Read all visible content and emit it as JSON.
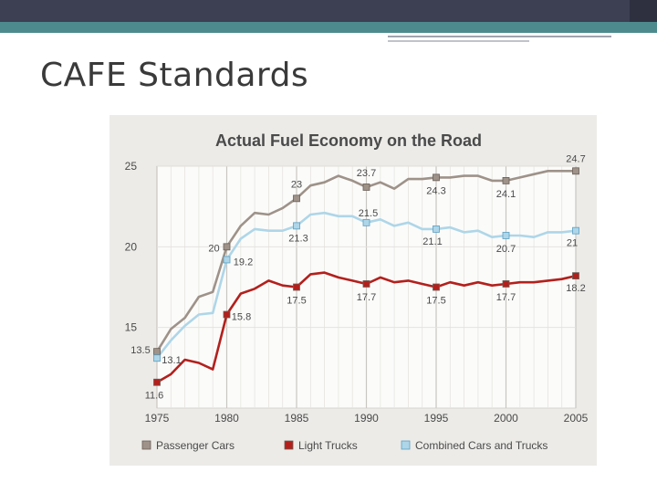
{
  "slide": {
    "title": "CAFE Standards",
    "colors": {
      "top_bar": "#3d3f52",
      "accent_bar": "#4d8a8e"
    }
  },
  "chart_data": {
    "type": "line",
    "title": "Actual Fuel Economy on the Road",
    "xlabel": "",
    "ylabel": "",
    "xlim": [
      1975,
      2005
    ],
    "ylim": [
      10,
      25
    ],
    "x_ticks": [
      "1975",
      "1980",
      "1985",
      "1990",
      "1995",
      "2000",
      "2005"
    ],
    "y_ticks": [
      "15",
      "20",
      "25"
    ],
    "grid": true,
    "legend_position": "bottom",
    "series": [
      {
        "name": "Passenger Cars",
        "color": "#9e9289",
        "x": [
          1975,
          1976,
          1977,
          1978,
          1979,
          1980,
          1981,
          1982,
          1983,
          1984,
          1985,
          1986,
          1987,
          1988,
          1989,
          1990,
          1991,
          1992,
          1993,
          1994,
          1995,
          1996,
          1997,
          1998,
          1999,
          2000,
          2001,
          2002,
          2003,
          2004,
          2005
        ],
        "y": [
          13.5,
          14.9,
          15.6,
          16.9,
          17.2,
          20.0,
          21.3,
          22.1,
          22.0,
          22.4,
          23.0,
          23.8,
          24.0,
          24.4,
          24.1,
          23.7,
          24.0,
          23.6,
          24.2,
          24.2,
          24.3,
          24.3,
          24.4,
          24.4,
          24.1,
          24.1,
          24.3,
          24.5,
          24.7,
          24.7,
          24.7
        ],
        "labeled_points": [
          [
            1975,
            "13.5"
          ],
          [
            1980,
            "20"
          ],
          [
            1985,
            "23"
          ],
          [
            1990,
            "23.7"
          ],
          [
            1995,
            "24.3"
          ],
          [
            2000,
            "24.1"
          ],
          [
            2005,
            "24.7"
          ]
        ]
      },
      {
        "name": "Light Trucks",
        "color": "#b3201c",
        "x": [
          1975,
          1976,
          1977,
          1978,
          1979,
          1980,
          1981,
          1982,
          1983,
          1984,
          1985,
          1986,
          1987,
          1988,
          1989,
          1990,
          1991,
          1992,
          1993,
          1994,
          1995,
          1996,
          1997,
          1998,
          1999,
          2000,
          2001,
          2002,
          2003,
          2004,
          2005
        ],
        "y": [
          11.6,
          12.1,
          13.0,
          12.8,
          12.4,
          15.8,
          17.1,
          17.4,
          17.9,
          17.6,
          17.5,
          18.3,
          18.4,
          18.1,
          17.9,
          17.7,
          18.1,
          17.8,
          17.9,
          17.7,
          17.5,
          17.8,
          17.6,
          17.8,
          17.6,
          17.7,
          17.8,
          17.8,
          17.9,
          18.0,
          18.2
        ],
        "labeled_points": [
          [
            1975,
            "11.6"
          ],
          [
            1980,
            "15.8"
          ],
          [
            1985,
            "17.5"
          ],
          [
            1990,
            "17.7"
          ],
          [
            1995,
            "17.5"
          ],
          [
            2000,
            "17.7"
          ],
          [
            2005,
            "18.2"
          ]
        ]
      },
      {
        "name": "Combined Cars and Trucks",
        "color": "#aed6e8",
        "x": [
          1975,
          1976,
          1977,
          1978,
          1979,
          1980,
          1981,
          1982,
          1983,
          1984,
          1985,
          1986,
          1987,
          1988,
          1989,
          1990,
          1991,
          1992,
          1993,
          1994,
          1995,
          1996,
          1997,
          1998,
          1999,
          2000,
          2001,
          2002,
          2003,
          2004,
          2005
        ],
        "y": [
          13.1,
          14.2,
          15.1,
          15.8,
          15.9,
          19.2,
          20.5,
          21.1,
          21.0,
          21.0,
          21.3,
          22.0,
          22.1,
          21.9,
          21.9,
          21.5,
          21.7,
          21.3,
          21.5,
          21.1,
          21.1,
          21.2,
          20.9,
          21.0,
          20.6,
          20.7,
          20.7,
          20.6,
          20.9,
          20.9,
          21.0
        ],
        "labeled_points": [
          [
            1975,
            "13.1"
          ],
          [
            1980,
            "19.2"
          ],
          [
            1985,
            "21.3"
          ],
          [
            1990,
            "21.5"
          ],
          [
            1995,
            "21.1"
          ],
          [
            2000,
            "20.7"
          ],
          [
            2005,
            "21"
          ]
        ]
      }
    ]
  }
}
